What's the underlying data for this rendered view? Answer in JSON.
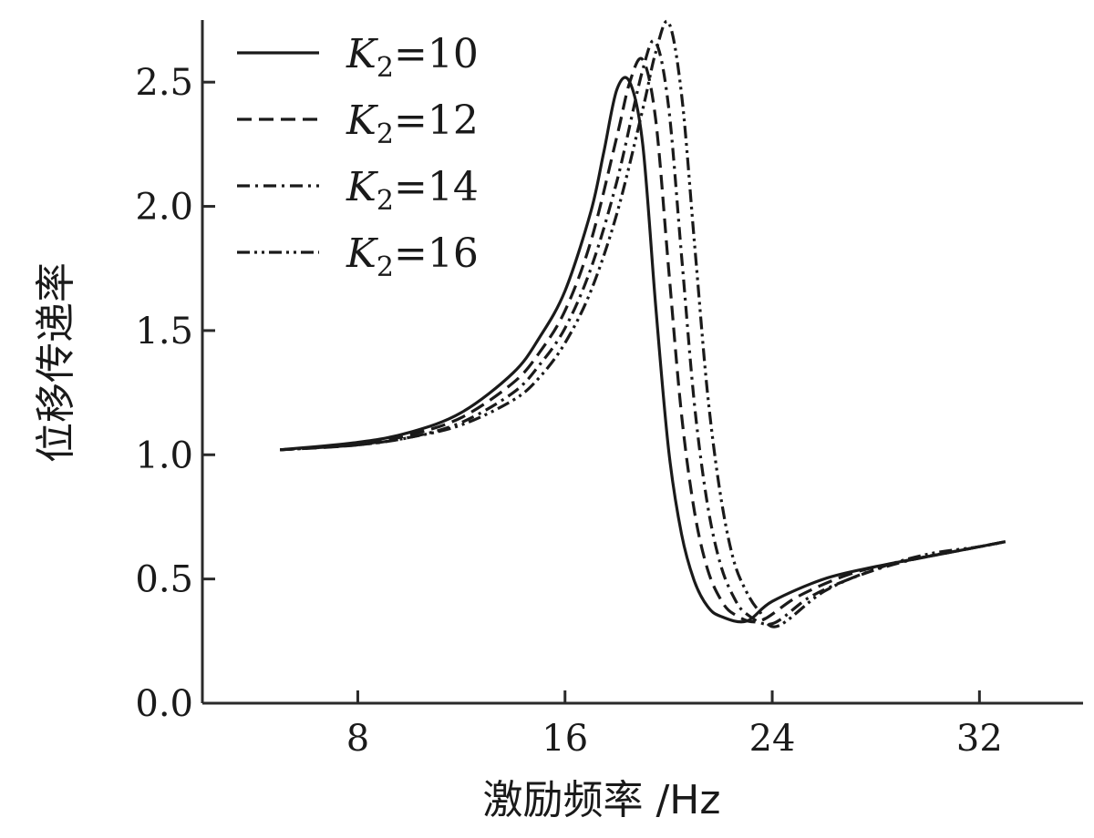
{
  "chart_data": {
    "type": "line",
    "title": "",
    "xlabel": "激励频率 /Hz",
    "ylabel": "位移传递率",
    "xlim": [
      2,
      36
    ],
    "ylim": [
      0,
      2.75
    ],
    "x_ticks": [
      8,
      16,
      24,
      32
    ],
    "x_tick_labels": [
      "8",
      "16",
      "24",
      "32"
    ],
    "y_ticks": [
      0.0,
      0.5,
      1.0,
      1.5,
      2.0,
      2.5
    ],
    "y_tick_labels": [
      "0.0",
      "0.5",
      "1.0",
      "1.5",
      "2.0",
      "2.5"
    ],
    "grid": false,
    "legend_position": "top-left",
    "series": [
      {
        "name": "K2=10",
        "legend_symbol": "K",
        "legend_subscript": "2",
        "legend_value": "=10",
        "line_style": "solid",
        "x": [
          5,
          8,
          10,
          12,
          14,
          15,
          16,
          17,
          17.5,
          18,
          18.5,
          19,
          19.5,
          20,
          20.5,
          21,
          21.5,
          22,
          23,
          24,
          26,
          28,
          30,
          32,
          33
        ],
        "y": [
          1.02,
          1.05,
          1.09,
          1.17,
          1.33,
          1.47,
          1.66,
          1.98,
          2.22,
          2.47,
          2.5,
          2.25,
          1.6,
          1.02,
          0.68,
          0.49,
          0.39,
          0.35,
          0.33,
          0.41,
          0.5,
          0.55,
          0.59,
          0.63,
          0.65
        ]
      },
      {
        "name": "K2=12",
        "legend_symbol": "K",
        "legend_subscript": "2",
        "legend_value": "=12",
        "line_style": "dashed",
        "x": [
          5,
          8,
          10,
          12,
          14,
          15,
          16,
          17,
          18,
          18.5,
          19,
          19.5,
          20,
          20.5,
          21,
          21.5,
          22,
          22.5,
          23.5,
          25,
          27,
          29,
          31,
          33
        ],
        "y": [
          1.02,
          1.04,
          1.08,
          1.15,
          1.29,
          1.41,
          1.58,
          1.86,
          2.28,
          2.5,
          2.59,
          2.35,
          1.75,
          1.16,
          0.77,
          0.54,
          0.42,
          0.36,
          0.33,
          0.43,
          0.52,
          0.57,
          0.61,
          0.65
        ]
      },
      {
        "name": "K2=14",
        "legend_symbol": "K",
        "legend_subscript": "2",
        "legend_value": "=14",
        "line_style": "dash-dot",
        "x": [
          5,
          8,
          10,
          12,
          14,
          15,
          16,
          17,
          18,
          19,
          19.5,
          20,
          20.5,
          21,
          21.5,
          22,
          22.5,
          23,
          24,
          25.5,
          27.5,
          29.5,
          31.5,
          33
        ],
        "y": [
          1.02,
          1.04,
          1.07,
          1.13,
          1.25,
          1.36,
          1.51,
          1.75,
          2.1,
          2.55,
          2.66,
          2.4,
          1.8,
          1.2,
          0.8,
          0.56,
          0.43,
          0.36,
          0.32,
          0.43,
          0.52,
          0.58,
          0.62,
          0.65
        ]
      },
      {
        "name": "K2=16",
        "legend_symbol": "K",
        "legend_subscript": "2",
        "legend_value": "=16",
        "line_style": "dash-dot-dot",
        "x": [
          5,
          8,
          10,
          12,
          14,
          15,
          16,
          17,
          18,
          19,
          19.5,
          20,
          20.5,
          21,
          21.5,
          22,
          22.5,
          23,
          23.5,
          24.2,
          26,
          28,
          30,
          32,
          33
        ],
        "y": [
          1.02,
          1.04,
          1.07,
          1.12,
          1.22,
          1.31,
          1.45,
          1.66,
          1.97,
          2.39,
          2.62,
          2.74,
          2.45,
          1.85,
          1.25,
          0.84,
          0.58,
          0.45,
          0.37,
          0.31,
          0.45,
          0.54,
          0.6,
          0.63,
          0.65
        ]
      }
    ]
  }
}
